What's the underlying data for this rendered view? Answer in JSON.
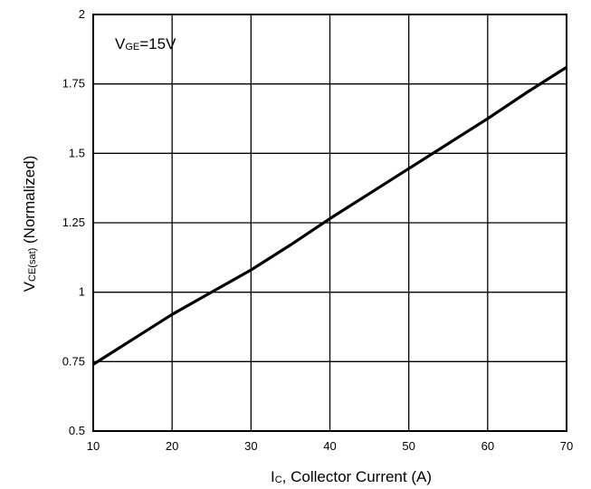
{
  "chart_data": {
    "type": "line",
    "title": "",
    "xlabel": {
      "main": "I",
      "sub": "C",
      "rest": ", Collector Current (A)"
    },
    "ylabel": {
      "main": "V",
      "sub": "CE(sat)",
      "rest": " (Normalized)"
    },
    "annotation": {
      "main": "V",
      "sub": "GE",
      "rest": "=15V"
    },
    "xlim": [
      10,
      70
    ],
    "ylim": [
      0.5,
      2
    ],
    "x_ticks": [
      10,
      20,
      30,
      40,
      50,
      60,
      70
    ],
    "x_tick_labels": [
      "10",
      "20",
      "30",
      "40",
      "50",
      "60",
      "70"
    ],
    "y_ticks": [
      0.5,
      0.75,
      1,
      1.25,
      1.5,
      1.75,
      2
    ],
    "y_tick_labels": [
      "0.5",
      "0.75",
      "1",
      "1.25",
      "1.5",
      "1.75",
      "2"
    ],
    "grid": true,
    "line_color": "#000000",
    "series": [
      {
        "x": [
          10,
          15,
          20,
          25,
          30,
          35,
          40,
          45,
          50,
          55,
          60,
          65,
          70
        ],
        "y": [
          0.74,
          0.83,
          0.92,
          1.0,
          1.08,
          1.17,
          1.265,
          1.355,
          1.445,
          1.535,
          1.625,
          1.72,
          1.81
        ]
      }
    ]
  }
}
